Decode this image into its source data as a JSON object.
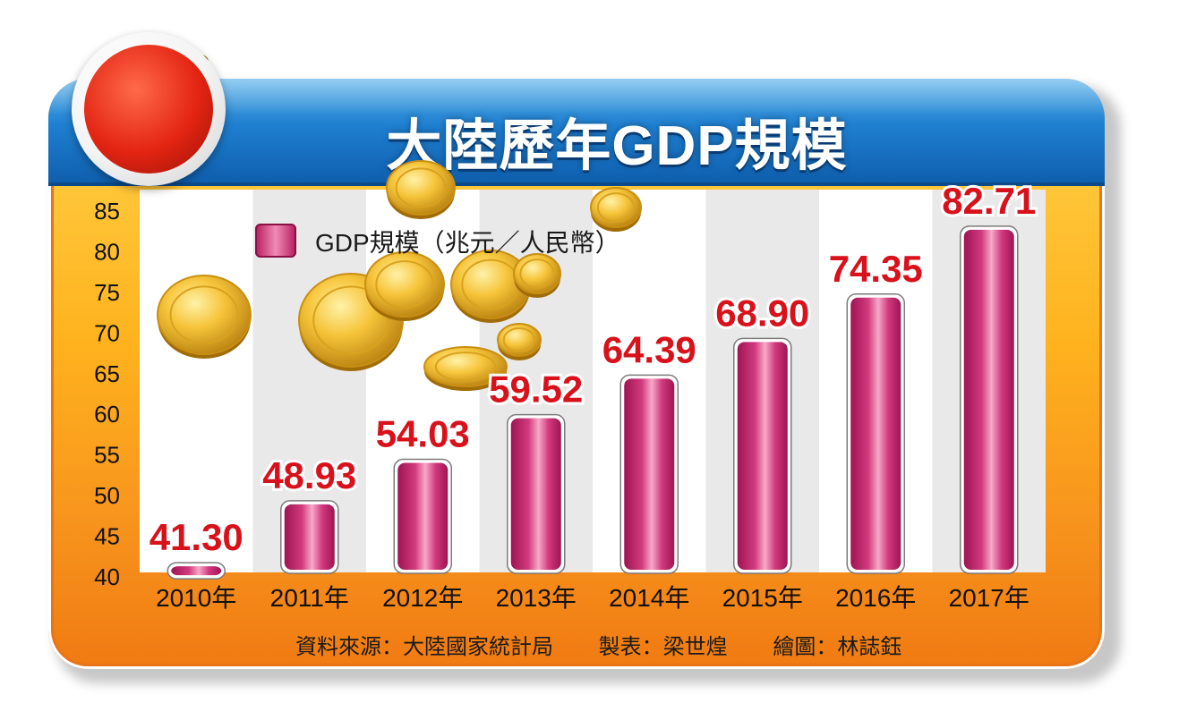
{
  "title": "大陸歷年GDP規模",
  "legend_label": "GDP規模（兆元／人民幣）",
  "footer": {
    "source": "資料來源：大陸國家統計局",
    "maker": "製表：梁世煌",
    "artist": "繪圖：林誌鈺"
  },
  "colors": {
    "bar": "#c2246a",
    "bar_highlight": "#f59ac0",
    "value_label": "#d8111b",
    "header_blue": "#1f7fd0",
    "panel_orange": "#f7941d"
  },
  "chart_data": {
    "type": "bar",
    "categories": [
      "2010年",
      "2011年",
      "2012年",
      "2013年",
      "2014年",
      "2015年",
      "2016年",
      "2017年"
    ],
    "values": [
      41.3,
      48.93,
      54.03,
      59.52,
      64.39,
      68.9,
      74.35,
      82.71
    ],
    "value_labels": [
      "41.30",
      "48.93",
      "54.03",
      "59.52",
      "64.39",
      "68.90",
      "74.35",
      "82.71"
    ],
    "ylim": [
      40,
      85
    ],
    "yticks": [
      "40",
      "45",
      "50",
      "55",
      "60",
      "65",
      "70",
      "75",
      "80",
      "85"
    ],
    "grid": false,
    "legend": "top-left"
  }
}
